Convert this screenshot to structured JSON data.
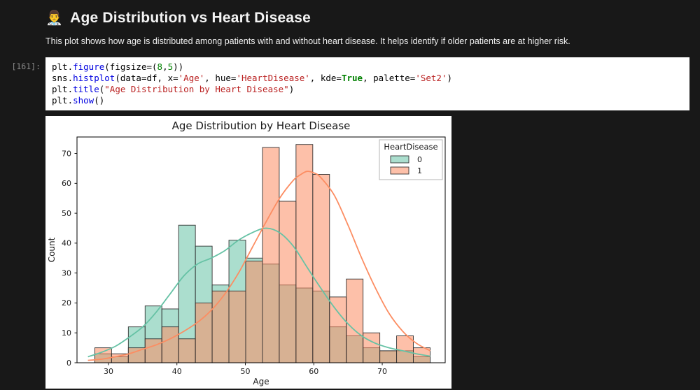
{
  "theme": {
    "page_bg": "#181818",
    "cell_bg": "#ffffff",
    "green": "#66c2a5",
    "orange": "#fc8d62"
  },
  "header": {
    "icon": "👨‍⚕️",
    "title": "Age Distribution vs Heart Disease",
    "description": "This plot shows how age is distributed among patients with and without heart disease. It helps identify if older patients are at higher risk."
  },
  "code_cell": {
    "execution_count": "[161]:",
    "lines": [
      [
        {
          "t": "plt.",
          "c": "p"
        },
        {
          "t": "figure",
          "c": "f"
        },
        {
          "t": "(figsize=(",
          "c": "p"
        },
        {
          "t": "8",
          "c": "num"
        },
        {
          "t": ",",
          "c": "p"
        },
        {
          "t": "5",
          "c": "num"
        },
        {
          "t": "))",
          "c": "p"
        }
      ],
      [
        {
          "t": "sns.",
          "c": "p"
        },
        {
          "t": "histplot",
          "c": "f"
        },
        {
          "t": "(data=df, x=",
          "c": "p"
        },
        {
          "t": "'Age'",
          "c": "str"
        },
        {
          "t": ", hue=",
          "c": "p"
        },
        {
          "t": "'HeartDisease'",
          "c": "str"
        },
        {
          "t": ", kde=",
          "c": "p"
        },
        {
          "t": "True",
          "c": "kw"
        },
        {
          "t": ", palette=",
          "c": "p"
        },
        {
          "t": "'Set2'",
          "c": "str"
        },
        {
          "t": ")",
          "c": "p"
        }
      ],
      [
        {
          "t": "plt.",
          "c": "p"
        },
        {
          "t": "title",
          "c": "f"
        },
        {
          "t": "(",
          "c": "p"
        },
        {
          "t": "\"Age Distribution by Heart Disease\"",
          "c": "str"
        },
        {
          "t": ")",
          "c": "p"
        }
      ],
      [
        {
          "t": "plt.",
          "c": "p"
        },
        {
          "t": "show",
          "c": "f"
        },
        {
          "t": "()",
          "c": "p"
        }
      ]
    ]
  },
  "chart_data": {
    "type": "bar",
    "subtype": "overlaid-histogram-with-kde",
    "title": "Age Distribution by Heart Disease",
    "xlabel": "Age",
    "ylabel": "Count",
    "xlim": [
      25.4,
      79.2
    ],
    "ylim": [
      0,
      75.5
    ],
    "xticks": [
      30,
      40,
      50,
      60,
      70
    ],
    "yticks": [
      0,
      10,
      20,
      30,
      40,
      50,
      60,
      70
    ],
    "bin_start": 28,
    "bin_width": 2.45,
    "figure_bg": "#ffffff",
    "grid": false,
    "legend": {
      "title": "HeartDisease",
      "position": "upper right",
      "entries": [
        {
          "label": "0",
          "color": "#66c2a5"
        },
        {
          "label": "1",
          "color": "#fc8d62"
        }
      ]
    },
    "series": [
      {
        "name": "0",
        "color": "#66c2a5",
        "counts": [
          3,
          2,
          12,
          19,
          18,
          46,
          39,
          26,
          41,
          35,
          33,
          26,
          25,
          24,
          12,
          9,
          5,
          4,
          4,
          2
        ]
      },
      {
        "name": "1",
        "color": "#fc8d62",
        "counts": [
          5,
          3,
          5,
          8,
          12,
          8,
          20,
          24,
          24,
          34,
          72,
          54,
          73,
          63,
          22,
          28,
          10,
          4,
          9,
          5
        ]
      }
    ],
    "kde": [
      {
        "name": "0",
        "color": "#66c2a5",
        "points": [
          [
            27,
            2
          ],
          [
            29,
            3.5
          ],
          [
            31,
            5.5
          ],
          [
            33,
            8.5
          ],
          [
            35,
            12
          ],
          [
            37,
            17
          ],
          [
            39,
            23
          ],
          [
            41,
            29
          ],
          [
            43,
            33
          ],
          [
            45,
            35
          ],
          [
            47,
            37.5
          ],
          [
            49,
            41
          ],
          [
            51,
            43.5
          ],
          [
            53,
            45
          ],
          [
            55,
            43.5
          ],
          [
            57,
            39
          ],
          [
            59,
            32
          ],
          [
            61,
            25
          ],
          [
            63,
            18.5
          ],
          [
            65,
            13
          ],
          [
            67,
            9
          ],
          [
            69,
            6.5
          ],
          [
            71,
            5
          ],
          [
            73,
            4
          ],
          [
            75,
            3
          ],
          [
            77,
            2.2
          ]
        ]
      },
      {
        "name": "1",
        "color": "#fc8d62",
        "points": [
          [
            27,
            0.8
          ],
          [
            29,
            1.2
          ],
          [
            31,
            2
          ],
          [
            33,
            3
          ],
          [
            35,
            4.5
          ],
          [
            37,
            6
          ],
          [
            39,
            8
          ],
          [
            41,
            10.5
          ],
          [
            43,
            13.5
          ],
          [
            45,
            17.5
          ],
          [
            47,
            23
          ],
          [
            49,
            30
          ],
          [
            51,
            38.5
          ],
          [
            53,
            47
          ],
          [
            55,
            55
          ],
          [
            57,
            61
          ],
          [
            58,
            62.8
          ],
          [
            59,
            64
          ],
          [
            60,
            63.5
          ],
          [
            61,
            62
          ],
          [
            63,
            56
          ],
          [
            65,
            46
          ],
          [
            67,
            35
          ],
          [
            69,
            25
          ],
          [
            71,
            16.5
          ],
          [
            73,
            10.5
          ],
          [
            75,
            6.5
          ],
          [
            77,
            4
          ]
        ]
      }
    ]
  }
}
